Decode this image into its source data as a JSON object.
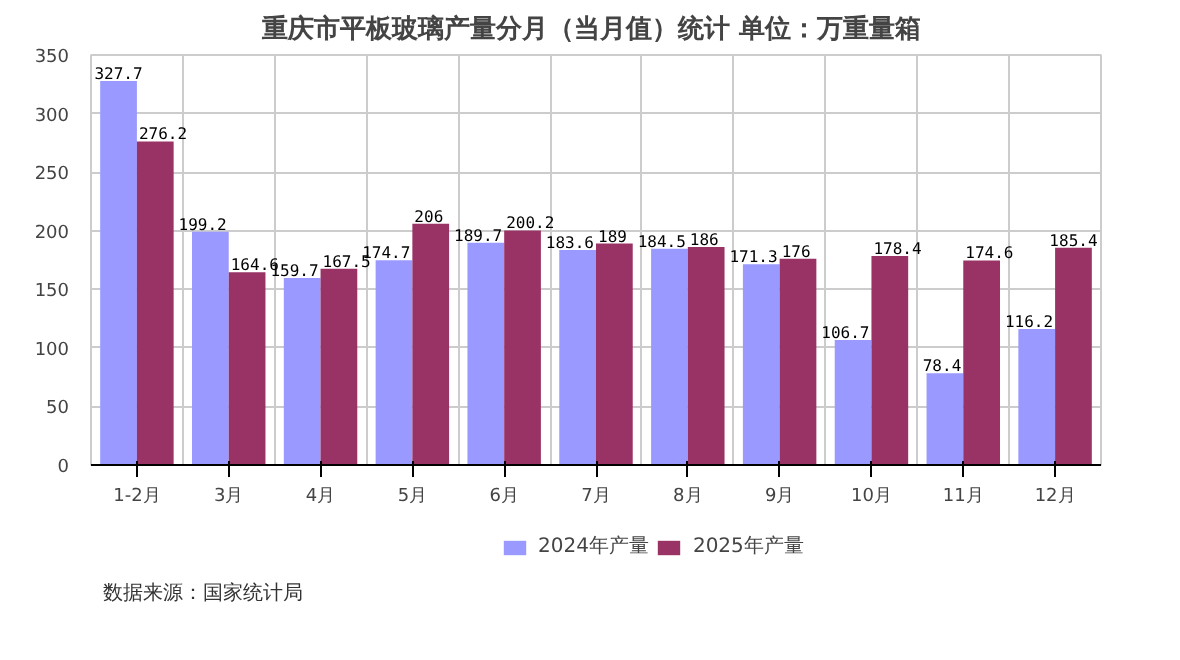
{
  "chart_data": {
    "type": "bar",
    "title": "重庆市平板玻璃产量分月（当月值）统计  单位：万重量箱",
    "categories": [
      "1-2月",
      "3月",
      "4月",
      "5月",
      "6月",
      "7月",
      "8月",
      "9月",
      "10月",
      "11月",
      "12月"
    ],
    "series": [
      {
        "name": "2024年产量",
        "color": "#9999ff",
        "values": [
          327.7,
          199.2,
          159.7,
          174.7,
          189.7,
          183.6,
          184.5,
          171.3,
          106.7,
          78.4,
          116.2
        ]
      },
      {
        "name": "2025年产量",
        "color": "#993366",
        "values": [
          276.2,
          164.6,
          167.5,
          206,
          200.2,
          189,
          186,
          176,
          178.4,
          174.6,
          185.4
        ]
      }
    ],
    "ylim": [
      0,
      350
    ],
    "yticks": [
      0,
      50,
      100,
      150,
      200,
      250,
      300,
      350
    ],
    "grid": true,
    "legend": "bottom",
    "data_labels": true,
    "annotations": [
      "数据来源：国家统计局"
    ]
  }
}
